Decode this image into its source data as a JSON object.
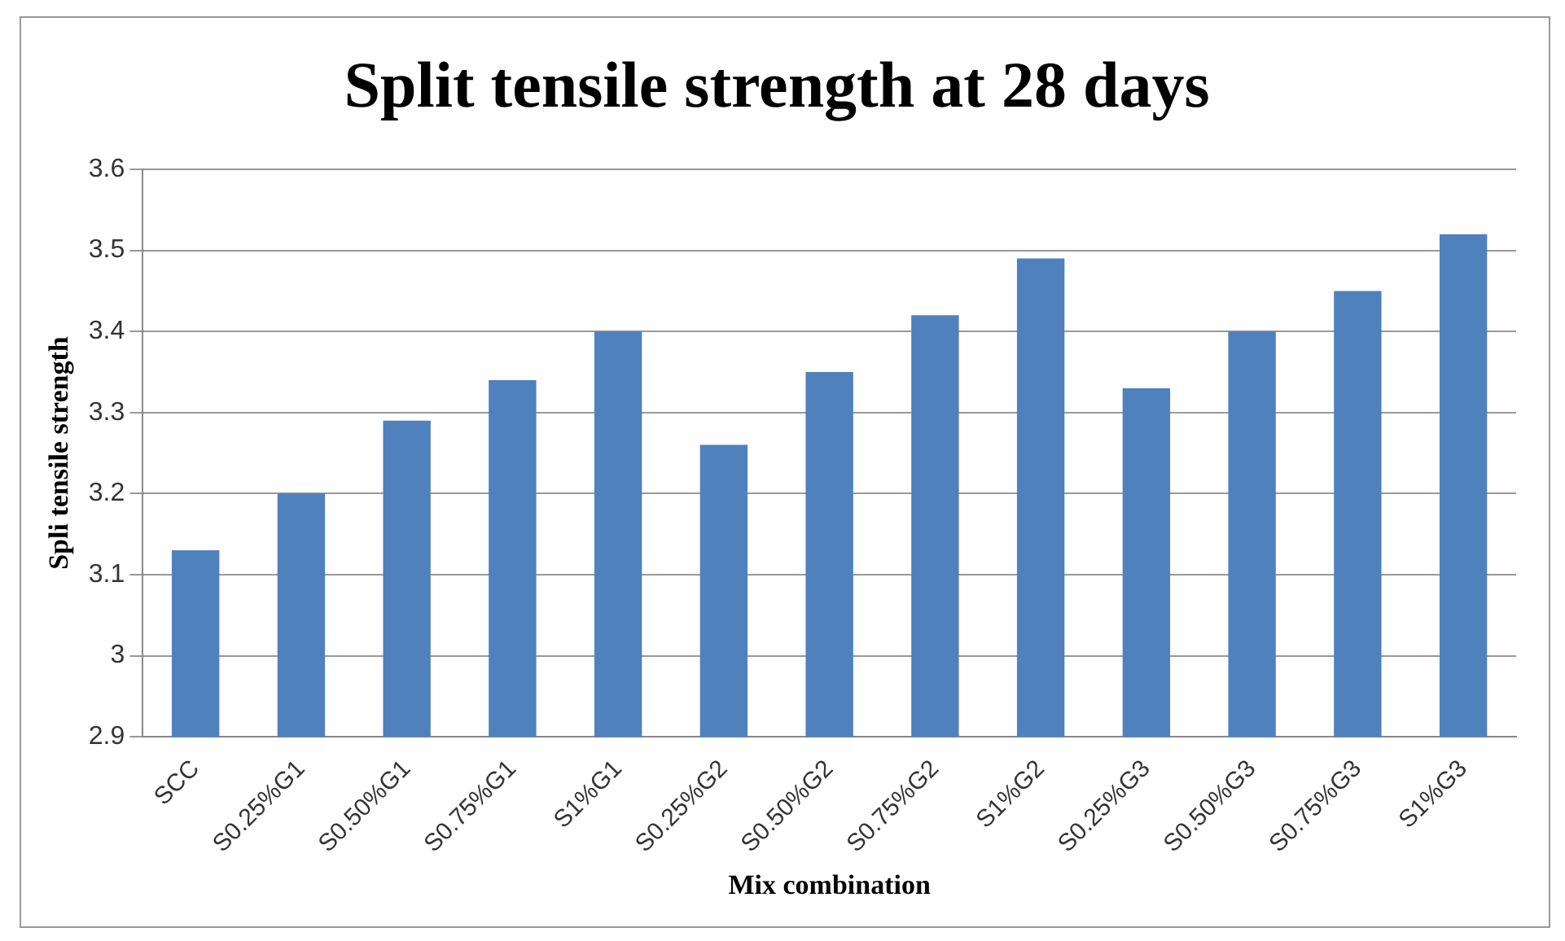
{
  "chart_data": {
    "type": "bar",
    "title": "Split tensile strength at 28 days",
    "xlabel": "Mix combination",
    "ylabel": "Spli tensile strength",
    "categories": [
      "SCC",
      "S0.25%G1",
      "S0.50%G1",
      "S0.75%G1",
      "S1%G1",
      "S0.25%G2",
      "S0.50%G2",
      "S0.75%G2",
      "S1%G2",
      "S0.25%G3",
      "S0.50%G3",
      "S0.75%G3",
      "S1%G3"
    ],
    "values": [
      3.13,
      3.2,
      3.29,
      3.34,
      3.4,
      3.26,
      3.35,
      3.42,
      3.49,
      3.33,
      3.4,
      3.45,
      3.52
    ],
    "color": "#4f81bd",
    "ylim": [
      2.9,
      3.6
    ],
    "yticks": [
      2.9,
      3,
      3.1,
      3.2,
      3.3,
      3.4,
      3.5,
      3.6
    ],
    "grid": "y",
    "legend": false
  }
}
